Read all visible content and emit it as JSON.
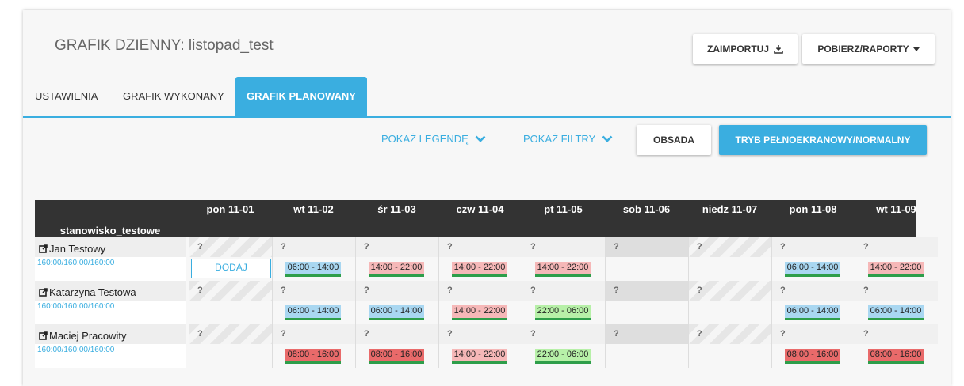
{
  "page": {
    "title": "GRAFIK DZIENNY: listopad_test",
    "import_button": "ZAIMPORTUJ",
    "reports_button": "POBIERZ/RAPORTY",
    "tabs": [
      "USTAWIENIA",
      "GRAFIK WYKONANY",
      "GRAFIK PLANOWANY"
    ],
    "active_tab": "GRAFIK PLANOWANY",
    "show_legend": "POKAŻ LEGENDĘ",
    "show_filters": "POKAŻ FILTRY",
    "obsada_button": "OBSADA",
    "fullscreen_button": "TRYB PEŁNOEKRANOWY/NORMALNY",
    "accent_color": "#3aaee0"
  },
  "schedule": {
    "station": "stanowisko_testowe",
    "days": [
      "pon 11-01",
      "wt 11-02",
      "śr 11-03",
      "czw 11-04",
      "pt 11-05",
      "sob 11-06",
      "niedz 11-07",
      "pon 11-08",
      "wt 11-09"
    ],
    "q_mark": "?",
    "add_label": "DODAJ",
    "employees": [
      {
        "name": "Jan Testowy",
        "hours": "160:00/160:00/160:00",
        "shifts": [
          "",
          "06:00 - 14:00",
          "14:00 - 22:00",
          "14:00 - 22:00",
          "14:00 - 22:00",
          "",
          "",
          "06:00 - 14:00",
          "14:00 - 22:00"
        ]
      },
      {
        "name": "Katarzyna Testowa",
        "hours": "160:00/160:00/160:00",
        "shifts": [
          "",
          "06:00 - 14:00",
          "06:00 - 14:00",
          "14:00 - 22:00",
          "22:00 - 06:00",
          "",
          "",
          "06:00 - 14:00",
          "06:00 - 14:00"
        ]
      },
      {
        "name": "Maciej Pracowity",
        "hours": "160:00/160:00/160:00",
        "shifts": [
          "",
          "08:00 - 16:00",
          "08:00 - 16:00",
          "14:00 - 22:00",
          "22:00 - 06:00",
          "",
          "",
          "08:00 - 16:00",
          "08:00 - 16:00"
        ]
      }
    ]
  }
}
